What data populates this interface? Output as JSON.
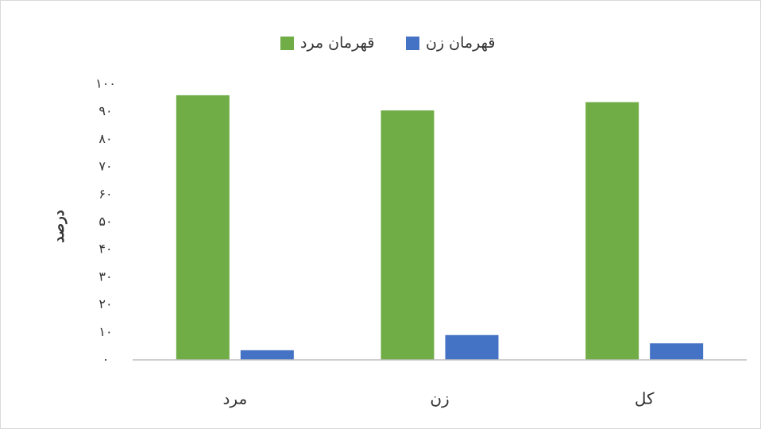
{
  "chart_data": {
    "type": "bar",
    "ylabel": "درصد",
    "categories": [
      "مرد",
      "زن",
      "کل"
    ],
    "series": [
      {
        "name": "قهرمان مرد",
        "color": "#70ad47",
        "values": [
          96,
          90.5,
          93.5
        ]
      },
      {
        "name": "قهرمان زن",
        "color": "#4472c4",
        "values": [
          3.5,
          9,
          6
        ]
      }
    ],
    "ylim": [
      0,
      100
    ],
    "yticks": [
      {
        "value": 0,
        "label": "۰"
      },
      {
        "value": 10,
        "label": "۱۰"
      },
      {
        "value": 20,
        "label": "۲۰"
      },
      {
        "value": 30,
        "label": "۳۰"
      },
      {
        "value": 40,
        "label": "۴۰"
      },
      {
        "value": 50,
        "label": "۵۰"
      },
      {
        "value": 60,
        "label": "۶۰"
      },
      {
        "value": 70,
        "label": "۷۰"
      },
      {
        "value": 80,
        "label": "۸۰"
      },
      {
        "value": 90,
        "label": "۹۰"
      },
      {
        "value": 100,
        "label": "۱۰۰"
      }
    ],
    "grid": false,
    "legend": "top"
  }
}
